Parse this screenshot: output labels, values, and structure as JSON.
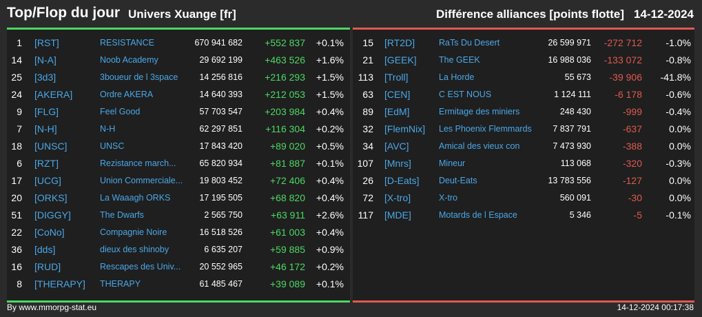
{
  "header": {
    "title": "Top/Flop du jour",
    "universe": "Univers Xuange [fr]",
    "subtitle": "Différence alliances [points flotte]",
    "date": "14-12-2024"
  },
  "colors": {
    "up": "#4cd964",
    "down": "#e05a4e",
    "link": "#4aa8e8"
  },
  "top": [
    {
      "rank": "1",
      "tag": "[RST]",
      "name": "RESISTANCE",
      "points": "670 941 682",
      "diff": "+552 837",
      "pct": "+0.1%"
    },
    {
      "rank": "14",
      "tag": "[N-A]",
      "name": "Noob Academy",
      "points": "29 692 199",
      "diff": "+463 526",
      "pct": "+1.6%"
    },
    {
      "rank": "25",
      "tag": "[3d3]",
      "name": "3boueur de l 3space",
      "points": "14 256 816",
      "diff": "+216 293",
      "pct": "+1.5%"
    },
    {
      "rank": "24",
      "tag": "[AKERA]",
      "name": "Ordre AKERA",
      "points": "14 640 393",
      "diff": "+212 053",
      "pct": "+1.5%"
    },
    {
      "rank": "9",
      "tag": "[FLG]",
      "name": "Feel Good",
      "points": "57 703 547",
      "diff": "+203 984",
      "pct": "+0.4%"
    },
    {
      "rank": "7",
      "tag": "[N-H]",
      "name": "N-H",
      "points": "62 297 851",
      "diff": "+116 304",
      "pct": "+0.2%"
    },
    {
      "rank": "18",
      "tag": "[UNSC]",
      "name": "UNSC",
      "points": "17 843 420",
      "diff": "+89 020",
      "pct": "+0.5%"
    },
    {
      "rank": "6",
      "tag": "[RZT]",
      "name": "Rezistance march...",
      "points": "65 820 934",
      "diff": "+81 887",
      "pct": "+0.1%"
    },
    {
      "rank": "17",
      "tag": "[UCG]",
      "name": "Union Commerciale...",
      "points": "19 803 452",
      "diff": "+72 406",
      "pct": "+0.4%"
    },
    {
      "rank": "20",
      "tag": "[ORKS]",
      "name": "La Waaagh ORKS",
      "points": "17 195 505",
      "diff": "+68 820",
      "pct": "+0.4%"
    },
    {
      "rank": "51",
      "tag": "[DIGGY]",
      "name": "The Dwarfs",
      "points": "2 565 750",
      "diff": "+63 911",
      "pct": "+2.6%"
    },
    {
      "rank": "22",
      "tag": "[CoNo]",
      "name": "Compagnie Noire",
      "points": "16 518 526",
      "diff": "+61 003",
      "pct": "+0.4%"
    },
    {
      "rank": "36",
      "tag": "[dds]",
      "name": "dieux des shinoby",
      "points": "6 635 207",
      "diff": "+59 885",
      "pct": "+0.9%"
    },
    {
      "rank": "16",
      "tag": "[RUD]",
      "name": "Rescapes des Univ...",
      "points": "20 552 965",
      "diff": "+46 172",
      "pct": "+0.2%"
    },
    {
      "rank": "8",
      "tag": "[THERAPY]",
      "name": "THERAPY",
      "points": "61 485 467",
      "diff": "+39 089",
      "pct": "+0.1%"
    }
  ],
  "flop": [
    {
      "rank": "15",
      "tag": "[RT2D]",
      "name": "RaTs Du Desert",
      "points": "26 599 971",
      "diff": "-272 712",
      "pct": "-1.0%"
    },
    {
      "rank": "21",
      "tag": "[GEEK]",
      "name": "The GEEK",
      "points": "16 988 036",
      "diff": "-133 072",
      "pct": "-0.8%"
    },
    {
      "rank": "113",
      "tag": "[Troll]",
      "name": "La Horde",
      "points": "55 673",
      "diff": "-39 906",
      "pct": "-41.8%"
    },
    {
      "rank": "63",
      "tag": "[CEN]",
      "name": "C EST NOUS",
      "points": "1 124 111",
      "diff": "-6 178",
      "pct": "-0.6%"
    },
    {
      "rank": "89",
      "tag": "[EdM]",
      "name": "Ermitage des miniers",
      "points": "248 430",
      "diff": "-999",
      "pct": "-0.4%"
    },
    {
      "rank": "32",
      "tag": "[FlemNix]",
      "name": "Les Phoenix Flemmards",
      "points": "7 837 791",
      "diff": "-637",
      "pct": "0.0%"
    },
    {
      "rank": "34",
      "tag": "[AVC]",
      "name": "Amical des vieux con",
      "points": "7 473 930",
      "diff": "-388",
      "pct": "0.0%"
    },
    {
      "rank": "107",
      "tag": "[Mnrs]",
      "name": "Mineur",
      "points": "113 068",
      "diff": "-320",
      "pct": "-0.3%"
    },
    {
      "rank": "26",
      "tag": "[D-Eats]",
      "name": "Deut-Eats",
      "points": "13 783 556",
      "diff": "-127",
      "pct": "0.0%"
    },
    {
      "rank": "72",
      "tag": "[X-tro]",
      "name": "X-tro",
      "points": "560 091",
      "diff": "-30",
      "pct": "0.0%"
    },
    {
      "rank": "117",
      "tag": "[MDE]",
      "name": "Motards de l Espace",
      "points": "5 346",
      "diff": "-5",
      "pct": "-0.1%"
    }
  ],
  "footer": {
    "source": "By www.mmorpg-stat.eu",
    "timestamp": "14-12-2024 00:17:38"
  }
}
